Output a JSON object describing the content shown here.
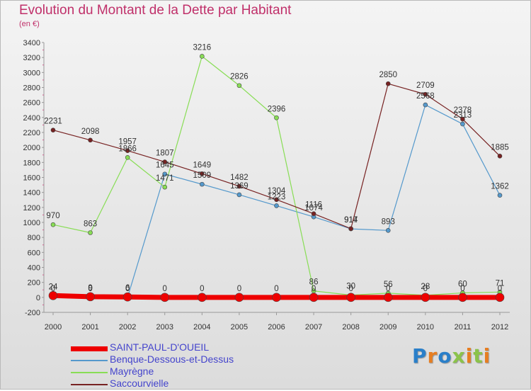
{
  "header": {
    "title": "Evolution du Montant de la Dette par Habitant",
    "subtitle": "(en €)"
  },
  "brand": {
    "text": "Proxiti"
  },
  "colors": {
    "SAINT-PAUL-D'OUEIL": "#ee0000",
    "Benque-Dessous-et-Dessus": "#5599cc",
    "Mayrègne": "#88dd55",
    "Saccourvielle": "#772222"
  },
  "chart_data": {
    "type": "line",
    "title": "Evolution du Montant de la Dette par Habitant",
    "subtitle": "(en €)",
    "x": [
      "2000",
      "2001",
      "2002",
      "2003",
      "2004",
      "2005",
      "2006",
      "2007",
      "2008",
      "2009",
      "2010",
      "2011",
      "2012"
    ],
    "ylim": [
      -200,
      3400
    ],
    "yticks": [
      -200,
      0,
      200,
      400,
      600,
      800,
      1000,
      1200,
      1400,
      1600,
      1800,
      2000,
      2200,
      2400,
      2600,
      2800,
      3000,
      3200,
      3400
    ],
    "grid": false,
    "legend_position": "bottom-left",
    "series": [
      {
        "name": "SAINT-PAUL-D'OUEIL",
        "values": [
          24,
          9,
          6,
          0,
          0,
          0,
          0,
          0,
          0,
          0,
          0,
          0,
          0
        ]
      },
      {
        "name": "Benque-Dessous-et-Dessus",
        "values": [
          0,
          0,
          0,
          1645,
          1509,
          1369,
          1223,
          1074,
          914,
          893,
          2568,
          2313,
          1362
        ]
      },
      {
        "name": "Mayrègne",
        "values": [
          970,
          863,
          1866,
          1471,
          3216,
          2826,
          2396,
          86,
          30,
          56,
          28,
          60,
          71
        ]
      },
      {
        "name": "Saccourvielle",
        "values": [
          2231,
          2098,
          1957,
          1807,
          1649,
          1482,
          1304,
          1116,
          917,
          2850,
          2709,
          2378,
          1885
        ]
      }
    ]
  }
}
